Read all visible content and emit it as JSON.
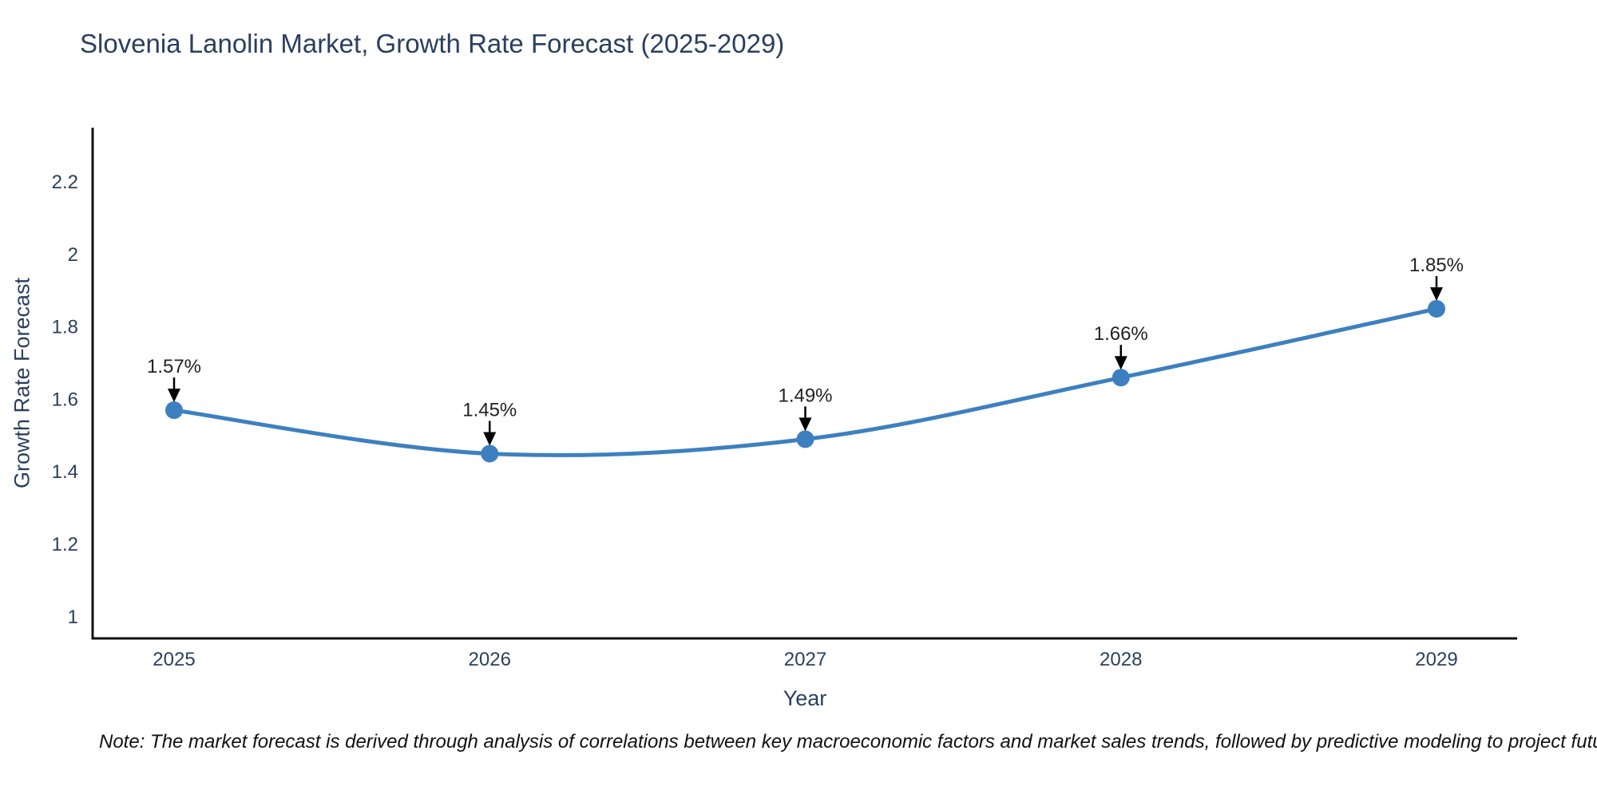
{
  "title": "Slovenia Lanolin Market, Growth Rate Forecast (2025-2029)",
  "note": "Note: The market forecast is derived through analysis of correlations between key macroeconomic factors and market sales trends, followed by predictive modeling to project future sales",
  "chart_data": {
    "type": "line",
    "line_shape": "spline",
    "title": "Slovenia Lanolin Market, Growth Rate Forecast (2025-2029)",
    "xlabel": "Year",
    "ylabel": "Growth Rate Forecast",
    "categories": [
      "2025",
      "2026",
      "2027",
      "2028",
      "2029"
    ],
    "series": [
      {
        "name": "Growth Rate Forecast",
        "values": [
          1.57,
          1.45,
          1.49,
          1.66,
          1.85
        ],
        "point_labels": [
          "1.57%",
          "1.45%",
          "1.49%",
          "1.66%",
          "1.85%"
        ]
      }
    ],
    "ytick_values": [
      1,
      1.2,
      1.4,
      1.6,
      1.8,
      2,
      2.2
    ],
    "ytick_labels": [
      "1",
      "1.2",
      "1.4",
      "1.6",
      "1.8",
      "2",
      "2.2"
    ],
    "ylim": [
      0.94,
      2.35
    ],
    "grid": false,
    "legend_position": "none",
    "markers": true,
    "annotation_arrows": true,
    "colors": {
      "line": "#3d80c0",
      "marker": "#3d80c0",
      "axis_line": "#111111",
      "tick_text": "#2a3f5f",
      "annotation_text": "#222222",
      "arrow": "#000000",
      "background": "#ffffff"
    }
  }
}
